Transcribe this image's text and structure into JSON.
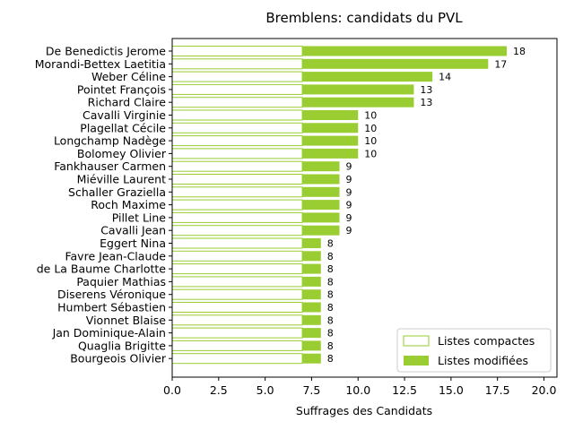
{
  "chart_data": {
    "type": "bar",
    "orientation": "horizontal",
    "stacked": true,
    "title": "Bremblens: candidats du PVL",
    "xlabel": "Suffrages des Candidats",
    "ylabel": "",
    "xlim": [
      0,
      20.7
    ],
    "xticks": [
      "0.0",
      "2.5",
      "5.0",
      "7.5",
      "10.0",
      "12.5",
      "15.0",
      "17.5",
      "20.0"
    ],
    "xtick_values": [
      0,
      2.5,
      5,
      7.5,
      10,
      12.5,
      15,
      17.5,
      20
    ],
    "grid": false,
    "legend_position": "lower-right",
    "colors": {
      "compact": "#9acd32",
      "modified": "#9acd32"
    },
    "categories": [
      "De Benedictis Jerome",
      "Morandi-Bettex Laetitia",
      "Weber Céline",
      "Pointet François",
      "Richard Claire",
      "Cavalli Virginie",
      "Plagellat Cécile",
      "Longchamp Nadège",
      "Bolomey Olivier",
      "Fankhauser Carmen",
      "Miéville Laurent",
      "Schaller Graziella",
      "Roch Maxime",
      "Pillet Line",
      "Cavalli Jean",
      "Eggert Nina",
      "Favre Jean-Claude",
      "de La Baume Charlotte",
      "Paquier Mathias",
      "Diserens Véronique",
      "Humbert Sébastien",
      "Vionnet Blaise",
      "Jan Dominique-Alain",
      "Quaglia Brigitte",
      "Bourgeois Olivier"
    ],
    "series": [
      {
        "name": "Listes compactes",
        "values": [
          7,
          7,
          7,
          7,
          7,
          7,
          7,
          7,
          7,
          7,
          7,
          7,
          7,
          7,
          7,
          7,
          7,
          7,
          7,
          7,
          7,
          7,
          7,
          7,
          7
        ]
      },
      {
        "name": "Listes modifiées",
        "values": [
          11,
          10,
          7,
          6,
          6,
          3,
          3,
          3,
          3,
          2,
          2,
          2,
          2,
          2,
          2,
          1,
          1,
          1,
          1,
          1,
          1,
          1,
          1,
          1,
          1
        ]
      }
    ],
    "totals": [
      18,
      17,
      14,
      13,
      13,
      10,
      10,
      10,
      10,
      9,
      9,
      9,
      9,
      9,
      9,
      8,
      8,
      8,
      8,
      8,
      8,
      8,
      8,
      8,
      8
    ]
  }
}
